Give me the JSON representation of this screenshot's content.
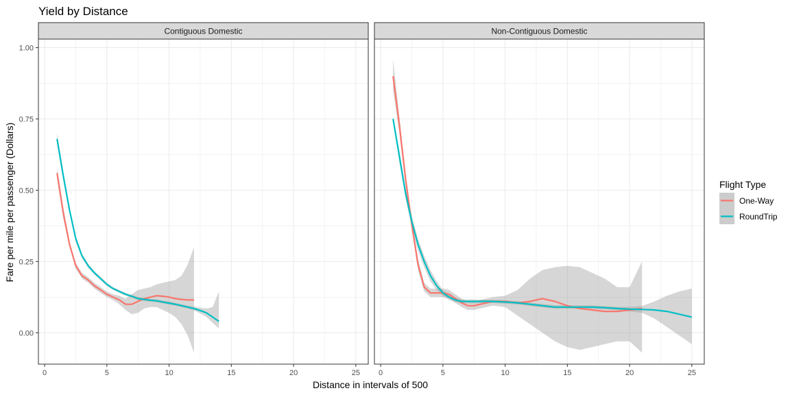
{
  "chart_data": {
    "type": "line",
    "title": "Yield by Distance",
    "xlabel": "Distance in intervals of 500",
    "ylabel": "Fare per mile per passenger (Dollars)",
    "xlim": [
      -0.5,
      26
    ],
    "ylim": [
      -0.11,
      1.03
    ],
    "x_ticks": [
      0,
      5,
      10,
      15,
      20,
      25
    ],
    "x_tick_labels": [
      "0",
      "5",
      "10",
      "15",
      "20",
      "25"
    ],
    "y_ticks": [
      0,
      0.25,
      0.5,
      0.75,
      1.0
    ],
    "y_tick_labels": [
      "0.00",
      "0.25",
      "0.50",
      "0.75",
      "1.00"
    ],
    "grid": true,
    "legend": {
      "title": "Flight Type",
      "position": "right",
      "entries": [
        {
          "label": "One-Way",
          "color": "#F8766D"
        },
        {
          "label": "RoundTrip",
          "color": "#00BFC4"
        }
      ]
    },
    "colors": {
      "One-Way": "#F8766D",
      "RoundTrip": "#00BFC4",
      "ribbon": "#cccccc",
      "strip_bg": "#d9d9d9",
      "grid": "#ebebeb"
    },
    "panels": [
      {
        "strip": "Contiguous Domestic",
        "series": [
          {
            "name": "One-Way",
            "x": [
              1,
              1.5,
              2,
              2.5,
              3,
              3.5,
              4,
              4.5,
              5,
              5.5,
              6,
              6.5,
              7,
              7.5,
              8,
              8.5,
              9,
              9.5,
              10,
              10.5,
              11,
              11.5,
              12
            ],
            "y": [
              0.56,
              0.42,
              0.31,
              0.235,
              0.2,
              0.185,
              0.165,
              0.15,
              0.135,
              0.125,
              0.115,
              0.1,
              0.1,
              0.11,
              0.12,
              0.125,
              0.13,
              0.128,
              0.125,
              0.12,
              0.117,
              0.115,
              0.115
            ],
            "lo": [
              0.54,
              0.4,
              0.3,
              0.225,
              0.19,
              0.175,
              0.155,
              0.14,
              0.125,
              0.115,
              0.1,
              0.08,
              0.065,
              0.07,
              0.085,
              0.09,
              0.09,
              0.08,
              0.07,
              0.055,
              0.03,
              -0.01,
              -0.07
            ],
            "hi": [
              0.58,
              0.44,
              0.32,
              0.245,
              0.21,
              0.195,
              0.175,
              0.16,
              0.145,
              0.135,
              0.13,
              0.12,
              0.135,
              0.15,
              0.155,
              0.16,
              0.17,
              0.175,
              0.18,
              0.185,
              0.2,
              0.24,
              0.3
            ]
          },
          {
            "name": "RoundTrip",
            "x": [
              1,
              1.5,
              2,
              2.5,
              3,
              3.5,
              4,
              4.5,
              5,
              5.5,
              6,
              6.5,
              7,
              7.5,
              8,
              8.5,
              9,
              9.5,
              10,
              10.5,
              11,
              11.5,
              12,
              12.5,
              13,
              13.5,
              14
            ],
            "y": [
              0.68,
              0.55,
              0.43,
              0.33,
              0.27,
              0.235,
              0.21,
              0.19,
              0.17,
              0.155,
              0.145,
              0.135,
              0.128,
              0.12,
              0.117,
              0.114,
              0.112,
              0.108,
              0.104,
              0.1,
              0.095,
              0.09,
              0.085,
              0.078,
              0.07,
              0.055,
              0.04
            ],
            "lo": [
              0.66,
              0.535,
              0.42,
              0.32,
              0.263,
              0.228,
              0.204,
              0.184,
              0.165,
              0.15,
              0.14,
              0.13,
              0.123,
              0.115,
              0.112,
              0.109,
              0.107,
              0.103,
              0.099,
              0.095,
              0.09,
              0.085,
              0.078,
              0.068,
              0.055,
              0.035,
              0.015
            ],
            "hi": [
              0.7,
              0.565,
              0.44,
              0.34,
              0.277,
              0.242,
              0.216,
              0.196,
              0.175,
              0.16,
              0.15,
              0.14,
              0.133,
              0.125,
              0.122,
              0.119,
              0.117,
              0.113,
              0.109,
              0.105,
              0.1,
              0.095,
              0.092,
              0.088,
              0.085,
              0.09,
              0.145
            ]
          }
        ]
      },
      {
        "strip": "Non-Contiguous Domestic",
        "series": [
          {
            "name": "One-Way",
            "x": [
              1,
              1.5,
              2,
              2.5,
              3,
              3.5,
              4,
              4.5,
              5,
              5.5,
              6,
              6.5,
              7,
              7.5,
              8,
              9,
              10,
              11,
              12,
              13,
              14,
              15,
              16,
              17,
              18,
              19,
              20,
              21
            ],
            "y": [
              0.9,
              0.73,
              0.54,
              0.38,
              0.24,
              0.16,
              0.14,
              0.14,
              0.14,
              0.135,
              0.12,
              0.105,
              0.095,
              0.095,
              0.1,
              0.11,
              0.11,
              0.105,
              0.11,
              0.12,
              0.11,
              0.095,
              0.085,
              0.08,
              0.075,
              0.075,
              0.08,
              0.085
            ],
            "lo": [
              0.85,
              0.7,
              0.52,
              0.36,
              0.22,
              0.145,
              0.125,
              0.125,
              0.125,
              0.12,
              0.105,
              0.09,
              0.08,
              0.08,
              0.085,
              0.095,
              0.09,
              0.06,
              0.03,
              0.0,
              -0.03,
              -0.05,
              -0.06,
              -0.05,
              -0.04,
              -0.03,
              -0.03,
              -0.07
            ],
            "hi": [
              0.96,
              0.76,
              0.56,
              0.4,
              0.26,
              0.175,
              0.155,
              0.155,
              0.155,
              0.15,
              0.135,
              0.12,
              0.11,
              0.11,
              0.115,
              0.125,
              0.13,
              0.15,
              0.19,
              0.22,
              0.23,
              0.235,
              0.23,
              0.21,
              0.19,
              0.16,
              0.16,
              0.25
            ]
          },
          {
            "name": "RoundTrip",
            "x": [
              1,
              1.5,
              2,
              2.5,
              3,
              3.5,
              4,
              4.5,
              5,
              5.5,
              6,
              6.5,
              7,
              7.5,
              8,
              9,
              10,
              11,
              12,
              13,
              14,
              15,
              16,
              17,
              18,
              19,
              20,
              21,
              22,
              23,
              24,
              25
            ],
            "y": [
              0.75,
              0.62,
              0.49,
              0.39,
              0.31,
              0.25,
              0.2,
              0.165,
              0.14,
              0.125,
              0.115,
              0.11,
              0.11,
              0.11,
              0.11,
              0.11,
              0.108,
              0.105,
              0.1,
              0.095,
              0.09,
              0.09,
              0.09,
              0.09,
              0.088,
              0.085,
              0.083,
              0.082,
              0.08,
              0.075,
              0.065,
              0.055
            ],
            "lo": [
              0.74,
              0.6,
              0.47,
              0.37,
              0.29,
              0.23,
              0.18,
              0.15,
              0.13,
              0.115,
              0.107,
              0.103,
              0.103,
              0.103,
              0.104,
              0.104,
              0.102,
              0.099,
              0.094,
              0.089,
              0.084,
              0.084,
              0.084,
              0.084,
              0.082,
              0.079,
              0.075,
              0.07,
              0.05,
              0.02,
              -0.01,
              -0.04
            ],
            "hi": [
              0.76,
              0.64,
              0.51,
              0.41,
              0.33,
              0.27,
              0.22,
              0.18,
              0.15,
              0.135,
              0.123,
              0.117,
              0.117,
              0.117,
              0.116,
              0.116,
              0.114,
              0.111,
              0.106,
              0.101,
              0.096,
              0.096,
              0.096,
              0.096,
              0.094,
              0.091,
              0.091,
              0.094,
              0.11,
              0.13,
              0.145,
              0.155
            ]
          }
        ]
      }
    ]
  }
}
